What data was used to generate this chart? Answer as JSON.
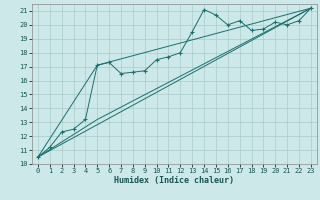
{
  "xlabel": "Humidex (Indice chaleur)",
  "bg_color": "#cce8e8",
  "grid_color": "#aacccc",
  "line_color": "#1a6e6e",
  "xlim": [
    -0.5,
    23.5
  ],
  "ylim": [
    10,
    21.5
  ],
  "x_ticks": [
    0,
    1,
    2,
    3,
    4,
    5,
    6,
    7,
    8,
    9,
    10,
    11,
    12,
    13,
    14,
    15,
    16,
    17,
    18,
    19,
    20,
    21,
    22,
    23
  ],
  "y_ticks": [
    10,
    11,
    12,
    13,
    14,
    15,
    16,
    17,
    18,
    19,
    20,
    21
  ],
  "main_x": [
    0,
    1,
    2,
    3,
    4,
    5,
    6,
    7,
    8,
    9,
    10,
    11,
    12,
    13,
    14,
    15,
    16,
    17,
    18,
    19,
    20,
    21,
    22,
    23
  ],
  "main_y": [
    10.5,
    11.2,
    12.3,
    12.5,
    13.2,
    17.1,
    17.3,
    16.5,
    16.6,
    16.7,
    17.5,
    17.7,
    18.0,
    19.5,
    21.1,
    20.7,
    20.0,
    20.3,
    19.6,
    19.7,
    20.2,
    20.0,
    20.3,
    21.2
  ],
  "line1_x": [
    0,
    23
  ],
  "line1_y": [
    10.5,
    21.2
  ],
  "line2_x": [
    0,
    5,
    23
  ],
  "line2_y": [
    10.5,
    17.1,
    21.2
  ],
  "line3_x": [
    0,
    5,
    23
  ],
  "line3_y": [
    10.5,
    13.2,
    21.2
  ],
  "tick_fontsize": 5,
  "xlabel_fontsize": 6
}
